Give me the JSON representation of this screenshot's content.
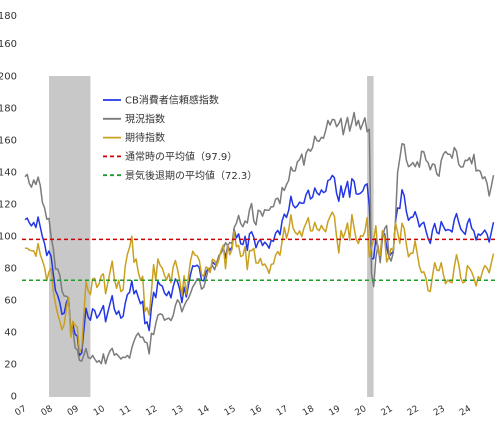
{
  "chart_data": {
    "type": "line",
    "ylim": [
      0,
      200
    ],
    "grid": false,
    "legend": "upper-left",
    "y_ticks": [
      "0",
      "20",
      "40",
      "60",
      "80",
      "100",
      "120",
      "140",
      "160",
      "180",
      "200"
    ],
    "y_stray_labels": [
      "180",
      "160"
    ],
    "x_tick_labels": [
      "07",
      "08",
      "09",
      "10",
      "11",
      "12",
      "13",
      "14",
      "15",
      "16",
      "17",
      "18",
      "19",
      "20",
      "21",
      "22",
      "23",
      "24"
    ],
    "recessions": [
      [
        "2007-12",
        "2009-06"
      ],
      [
        "2020-02",
        "2020-04"
      ]
    ],
    "recession_color": "#c8c8c8",
    "x": [
      "2007-01",
      "2007-02",
      "2007-03",
      "2007-04",
      "2007-05",
      "2007-06",
      "2007-07",
      "2007-08",
      "2007-09",
      "2007-10",
      "2007-11",
      "2007-12",
      "2008-01",
      "2008-02",
      "2008-03",
      "2008-04",
      "2008-05",
      "2008-06",
      "2008-07",
      "2008-08",
      "2008-09",
      "2008-10",
      "2008-11",
      "2008-12",
      "2009-01",
      "2009-02",
      "2009-03",
      "2009-04",
      "2009-05",
      "2009-06",
      "2009-07",
      "2009-08",
      "2009-09",
      "2009-10",
      "2009-11",
      "2009-12",
      "2010-01",
      "2010-02",
      "2010-03",
      "2010-04",
      "2010-05",
      "2010-06",
      "2010-07",
      "2010-08",
      "2010-09",
      "2010-10",
      "2010-11",
      "2010-12",
      "2011-01",
      "2011-02",
      "2011-03",
      "2011-04",
      "2011-05",
      "2011-06",
      "2011-07",
      "2011-08",
      "2011-09",
      "2011-10",
      "2011-11",
      "2011-12",
      "2012-01",
      "2012-02",
      "2012-03",
      "2012-04",
      "2012-05",
      "2012-06",
      "2012-07",
      "2012-08",
      "2012-09",
      "2012-10",
      "2012-11",
      "2012-12",
      "2013-01",
      "2013-02",
      "2013-03",
      "2013-04",
      "2013-05",
      "2013-06",
      "2013-07",
      "2013-08",
      "2013-09",
      "2013-10",
      "2013-11",
      "2013-12",
      "2014-01",
      "2014-02",
      "2014-03",
      "2014-04",
      "2014-05",
      "2014-06",
      "2014-07",
      "2014-08",
      "2014-09",
      "2014-10",
      "2014-11",
      "2014-12",
      "2015-01",
      "2015-02",
      "2015-03",
      "2015-04",
      "2015-05",
      "2015-06",
      "2015-07",
      "2015-08",
      "2015-09",
      "2015-10",
      "2015-11",
      "2015-12",
      "2016-01",
      "2016-02",
      "2016-03",
      "2016-04",
      "2016-05",
      "2016-06",
      "2016-07",
      "2016-08",
      "2016-09",
      "2016-10",
      "2016-11",
      "2016-12",
      "2017-01",
      "2017-02",
      "2017-03",
      "2017-04",
      "2017-05",
      "2017-06",
      "2017-07",
      "2017-08",
      "2017-09",
      "2017-10",
      "2017-11",
      "2017-12",
      "2018-01",
      "2018-02",
      "2018-03",
      "2018-04",
      "2018-05",
      "2018-06",
      "2018-07",
      "2018-08",
      "2018-09",
      "2018-10",
      "2018-11",
      "2018-12",
      "2019-01",
      "2019-02",
      "2019-03",
      "2019-04",
      "2019-05",
      "2019-06",
      "2019-07",
      "2019-08",
      "2019-09",
      "2019-10",
      "2019-11",
      "2019-12",
      "2020-01",
      "2020-02",
      "2020-03",
      "2020-04",
      "2020-05",
      "2020-06",
      "2020-07",
      "2020-08",
      "2020-09",
      "2020-10",
      "2020-11",
      "2020-12",
      "2021-01",
      "2021-02",
      "2021-03",
      "2021-04",
      "2021-05",
      "2021-06",
      "2021-07",
      "2021-08",
      "2021-09",
      "2021-10",
      "2021-11",
      "2021-12",
      "2022-01",
      "2022-02",
      "2022-03",
      "2022-04",
      "2022-05",
      "2022-06",
      "2022-07",
      "2022-08",
      "2022-09",
      "2022-10",
      "2022-11",
      "2022-12",
      "2023-01",
      "2023-02",
      "2023-03",
      "2023-04",
      "2023-05",
      "2023-06",
      "2023-07",
      "2023-08",
      "2023-09",
      "2023-10",
      "2023-11",
      "2023-12",
      "2024-01",
      "2024-02",
      "2024-03",
      "2024-04",
      "2024-05",
      "2024-06",
      "2024-07",
      "2024-08",
      "2024-09",
      "2024-10",
      "2024-11",
      "2024-12"
    ],
    "series": [
      {
        "name": "CB消費者信頼感指数",
        "color": "#2236e6",
        "values": [
          110.2,
          111.2,
          108.2,
          106.3,
          108.5,
          105.3,
          111.9,
          105.6,
          99.5,
          95.2,
          87.8,
          90.6,
          87.3,
          76.4,
          65.9,
          62.8,
          58.1,
          51.0,
          51.9,
          58.5,
          61.4,
          38.8,
          44.7,
          38.6,
          37.4,
          25.3,
          26.9,
          40.8,
          54.8,
          49.3,
          47.4,
          54.5,
          53.4,
          48.7,
          50.6,
          53.6,
          56.5,
          46.4,
          52.3,
          57.7,
          62.7,
          54.3,
          51.0,
          53.2,
          48.6,
          49.9,
          57.8,
          63.4,
          64.8,
          72.0,
          63.8,
          66.0,
          61.7,
          57.6,
          59.2,
          45.2,
          46.4,
          40.9,
          55.2,
          64.8,
          61.5,
          71.6,
          69.5,
          68.7,
          64.4,
          62.7,
          65.4,
          61.3,
          68.4,
          73.1,
          71.5,
          66.7,
          58.4,
          68.0,
          61.9,
          69.0,
          76.2,
          81.4,
          81.0,
          81.8,
          80.2,
          72.4,
          72.0,
          77.5,
          79.4,
          78.3,
          83.9,
          82.3,
          82.2,
          86.4,
          90.3,
          93.4,
          86.0,
          94.1,
          91.0,
          93.1,
          103.8,
          98.8,
          101.4,
          95.2,
          94.6,
          99.8,
          91.0,
          101.3,
          102.6,
          99.1,
          92.6,
          96.3,
          97.8,
          94.0,
          96.1,
          94.7,
          92.4,
          97.4,
          96.7,
          101.8,
          103.5,
          100.8,
          109.4,
          113.7,
          111.6,
          116.1,
          124.9,
          119.4,
          117.6,
          118.9,
          121.1,
          120.4,
          120.6,
          125.9,
          128.6,
          123.1,
          124.3,
          130.0,
          127.0,
          125.6,
          128.8,
          127.1,
          127.9,
          134.7,
          135.3,
          137.9,
          136.4,
          126.6,
          121.7,
          131.4,
          124.2,
          129.2,
          134.1,
          124.3,
          135.8,
          134.2,
          126.3,
          126.1,
          126.8,
          128.2,
          131.6,
          132.6,
          118.8,
          85.7,
          85.9,
          98.3,
          91.7,
          86.3,
          101.3,
          101.4,
          92.9,
          87.1,
          88.9,
          90.4,
          109.0,
          117.5,
          117.2,
          128.9,
          125.1,
          115.2,
          109.8,
          111.6,
          111.9,
          115.2,
          111.1,
          105.7,
          107.6,
          108.6,
          103.2,
          98.4,
          95.3,
          103.6,
          107.8,
          102.2,
          101.4,
          109.0,
          106.0,
          103.4,
          104.0,
          103.7,
          102.5,
          110.1,
          114.0,
          108.7,
          104.3,
          102.6,
          101.0,
          108.0,
          110.9,
          104.8,
          103.1,
          97.5,
          101.3,
          100.4,
          101.9,
          103.7,
          101.2,
          96.2,
          102.2,
          108.6
        ]
      },
      {
        "name": "現況指数",
        "color": "#7b7b7b",
        "values": [
          137.0,
          138.5,
          132.7,
          130.5,
          135.0,
          132.2,
          136.8,
          131.5,
          121.0,
          117.5,
          110.5,
          111.0,
          99.5,
          92.2,
          79.4,
          79.4,
          75.4,
          65.6,
          62.5,
          62.4,
          61.3,
          41.9,
          41.9,
          30.2,
          28.9,
          22.3,
          21.9,
          25.5,
          29.7,
          24.0,
          23.4,
          25.4,
          23.1,
          21.1,
          22.1,
          20.2,
          26.3,
          20.1,
          25.0,
          28.2,
          29.8,
          25.5,
          26.4,
          24.9,
          23.1,
          24.3,
          24.0,
          25.4,
          23.6,
          30.0,
          34.3,
          37.5,
          39.3,
          36.6,
          36.8,
          33.6,
          33.3,
          26.3,
          39.2,
          38.4,
          45.3,
          50.5,
          51.3,
          50.9,
          47.4,
          48.1,
          48.7,
          47.1,
          50.4,
          56.6,
          60.1,
          58.1,
          52.6,
          56.2,
          59.2,
          61.0,
          64.4,
          68.3,
          70.4,
          73.2,
          73.2,
          66.8,
          67.9,
          72.9,
          78.6,
          80.0,
          81.6,
          78.9,
          83.6,
          87.8,
          89.3,
          92.0,
          95.8,
          94.0,
          96.0,
          95.3,
          105.3,
          108.0,
          112.9,
          107.8,
          105.8,
          109.4,
          108.1,
          116.4,
          120.3,
          109.4,
          106.9,
          116.1,
          115.4,
          112.4,
          116.4,
          116.1,
          116.2,
          118.3,
          118.3,
          123.0,
          123.6,
          120.2,
          130.3,
          128.5,
          132.1,
          134.8,
          143.1,
          140.6,
          140.7,
          146.3,
          147.8,
          151.1,
          144.3,
          151.8,
          154.3,
          153.0,
          155.3,
          162.4,
          159.6,
          159.2,
          161.7,
          161.1,
          165.9,
          172.2,
          169.4,
          172.8,
          172.7,
          168.3,
          170.2,
          173.5,
          163.3,
          169.0,
          174.1,
          165.6,
          170.9,
          177.2,
          169.0,
          172.3,
          166.6,
          170.3,
          173.9,
          165.1,
          166.7,
          76.4,
          68.4,
          86.2,
          94.2,
          83.3,
          98.5,
          104.6,
          106.5,
          87.2,
          84.4,
          89.6,
          110.1,
          139.6,
          148.5,
          157.7,
          157.2,
          147.3,
          143.4,
          144.3,
          145.9,
          143.3,
          146.4,
          143.0,
          153.0,
          152.6,
          147.4,
          145.8,
          141.3,
          145.0,
          144.6,
          138.6,
          137.4,
          147.2,
          151.1,
          152.8,
          151.1,
          151.1,
          148.6,
          155.3,
          153.0,
          144.8,
          143.1,
          143.2,
          147.3,
          147.2,
          149.0,
          145.1,
          151.0,
          140.6,
          141.1,
          140.3,
          135.8,
          137.0,
          133.0,
          125.0,
          131.0,
          138.0
        ]
      },
      {
        "name": "期待指数",
        "color": "#c9a020",
        "values": [
          92.3,
          92.4,
          91.2,
          90.8,
          90.8,
          87.3,
          95.3,
          88.3,
          84.7,
          80.3,
          72.1,
          77.6,
          79.8,
          65.4,
          57.6,
          51.1,
          46.6,
          41.3,
          44.8,
          55.1,
          61.4,
          36.7,
          46.6,
          44.2,
          43.1,
          27.3,
          30.1,
          50.4,
          71.5,
          65.7,
          63.4,
          73.2,
          73.5,
          67.8,
          70.1,
          75.2,
          76.4,
          63.9,
          70.5,
          77.3,
          84.3,
          73.5,
          67.4,
          72.4,
          65.3,
          66.4,
          81.0,
          88.6,
          92.9,
          99.9,
          83.5,
          85.7,
          77.4,
          72.3,
          74.8,
          52.8,
          55.2,
          50.6,
          65.2,
          82.1,
          72.2,
          85.6,
          81.7,
          80.0,
          75.4,
          72.6,
          76.5,
          70.8,
          80.7,
          84.7,
          79.2,
          72.4,
          62.5,
          75.2,
          63.7,
          74.4,
          84.7,
          90.5,
          88.1,
          87.5,
          84.8,
          76.0,
          74.7,
          80.6,
          80.0,
          77.2,
          85.5,
          84.6,
          81.3,
          85.4,
          91.0,
          94.4,
          79.5,
          94.2,
          88.3,
          91.6,
          103.0,
          93.3,
          94.1,
          87.2,
          87.8,
          93.4,
          79.0,
          91.0,
          90.8,
          92.3,
          83.1,
          83.1,
          86.0,
          81.7,
          82.5,
          80.1,
          76.7,
          82.2,
          82.6,
          88.0,
          90.3,
          88.0,
          96.7,
          105.5,
          98.5,
          103.6,
          113.3,
          105.0,
          102.3,
          100.9,
          103.2,
          99.6,
          104.9,
          108.0,
          111.5,
          103.2,
          103.3,
          108.5,
          104.4,
          103.3,
          106.6,
          104.2,
          102.6,
          109.0,
          112.2,
          114.9,
          112.3,
          99.5,
          89.4,
          103.4,
          98.8,
          102.7,
          108.1,
          97.4,
          113.4,
          105.0,
          97.9,
          95.3,
          100.2,
          99.8,
          102.8,
          111.4,
          86.8,
          93.0,
          97.6,
          106.4,
          90.8,
          87.9,
          103.3,
          99.2,
          83.8,
          87.0,
          92.2,
          91.0,
          108.4,
          102.4,
          95.4,
          108.0,
          104.6,
          94.5,
          87.0,
          89.2,
          89.2,
          96.9,
          88.8,
          81.0,
          77.1,
          77.6,
          73.7,
          65.8,
          65.3,
          75.1,
          83.3,
          78.7,
          78.3,
          83.4,
          76.0,
          70.1,
          72.5,
          71.3,
          70.8,
          80.6,
          88.3,
          82.5,
          73.7,
          70.7,
          71.6,
          81.5,
          79.8,
          77.5,
          73.8,
          68.8,
          74.6,
          73.0,
          78.2,
          81.5,
          80.0,
          77.0,
          83.0,
          89.0
        ]
      }
    ],
    "reference_lines": [
      {
        "name": "通常時の平均値（97.9）",
        "value": 97.9,
        "color": "#d10000"
      },
      {
        "name": "景気後退期の平均値（72.3）",
        "value": 72.3,
        "color": "#1f9e2a"
      }
    ]
  }
}
